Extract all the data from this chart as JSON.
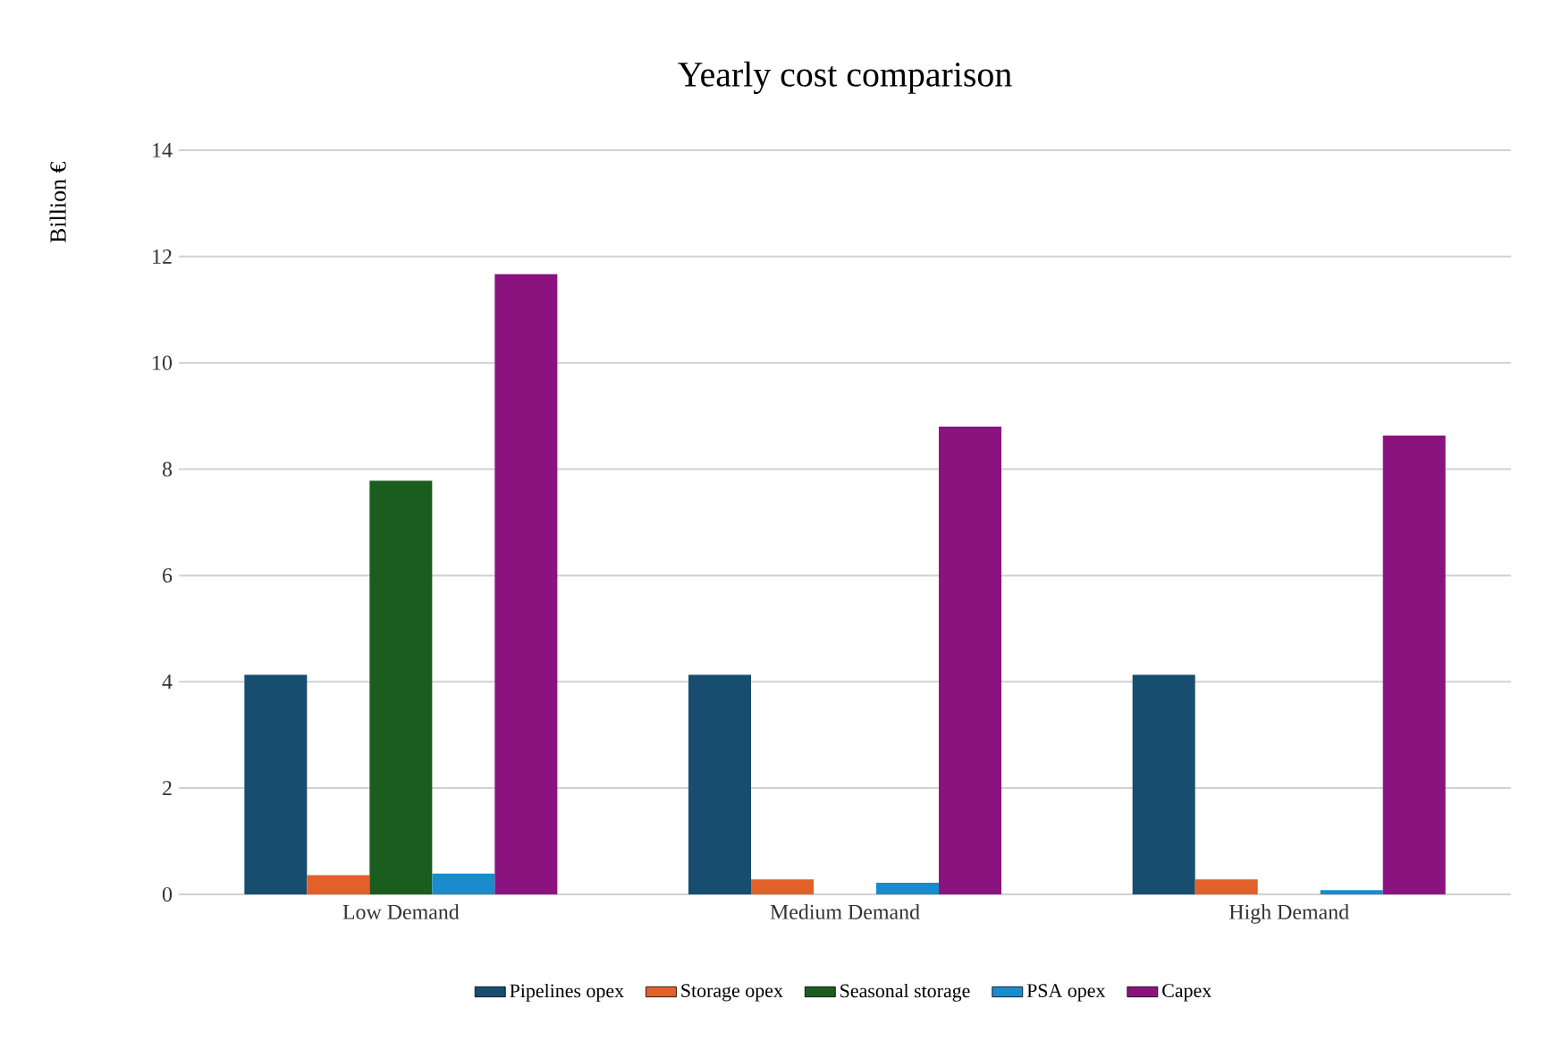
{
  "chart_data": {
    "type": "bar",
    "title": "Yearly cost comparison",
    "ylabel": "Billion €",
    "categories": [
      "Low Demand",
      "Medium Demand",
      "High Demand"
    ],
    "series": [
      {
        "name": "Pipelines opex",
        "color": "#174d6f",
        "values": [
          4.13,
          4.13,
          4.13
        ]
      },
      {
        "name": "Storage opex",
        "color": "#e2602a",
        "values": [
          0.36,
          0.28,
          0.28
        ]
      },
      {
        "name": "Seasonal storage",
        "color": "#1b5c1f",
        "values": [
          7.78,
          0,
          0
        ]
      },
      {
        "name": "PSA opex",
        "color": "#1a8bcd",
        "values": [
          0.39,
          0.22,
          0.08
        ]
      },
      {
        "name": "Capex",
        "color": "#8b1380",
        "values": [
          11.67,
          8.8,
          8.63
        ]
      }
    ],
    "ylim": [
      0,
      14
    ],
    "yticks": [
      0,
      2,
      4,
      6,
      8,
      10,
      12,
      14
    ],
    "grid": "y",
    "legend": "bottom"
  }
}
